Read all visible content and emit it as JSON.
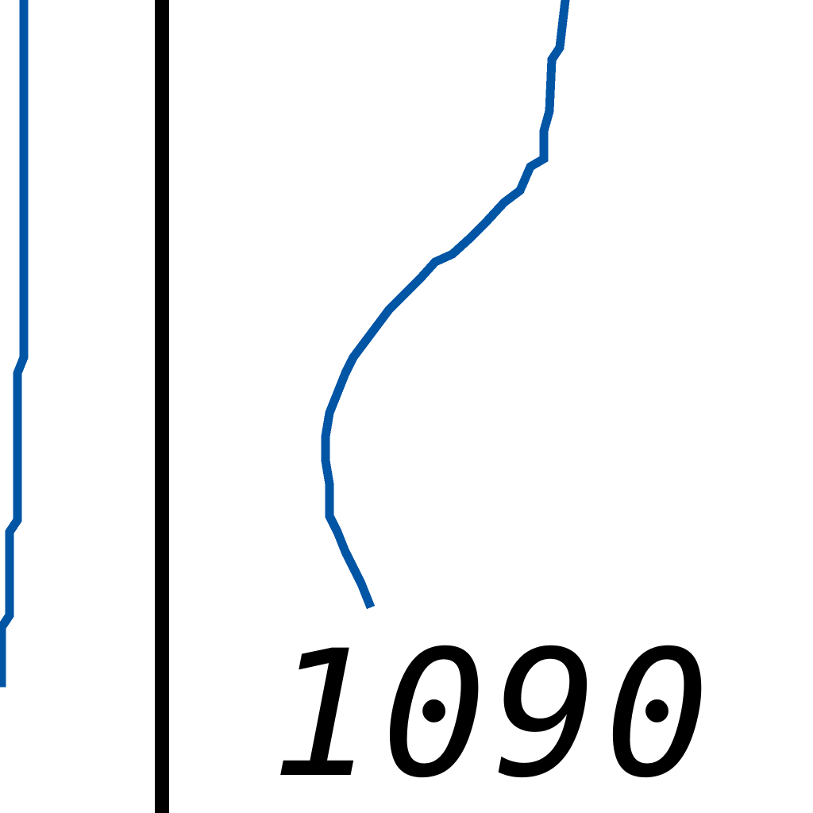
{
  "chart_data": {
    "type": "line",
    "title": "",
    "xlabel": "",
    "ylabel": "",
    "grid": false,
    "axis_color": "#000000",
    "series_color": "#0055a5",
    "x_tick_labels": [
      "1090"
    ],
    "series": [
      {
        "values": [
          [
            30,
            0
          ],
          [
            30,
            20
          ],
          [
            30,
            60
          ],
          [
            30,
            120
          ],
          [
            30,
            200
          ],
          [
            30,
            300
          ],
          [
            30,
            400
          ],
          [
            30,
            450
          ],
          [
            22,
            470
          ],
          [
            22,
            560
          ],
          [
            22,
            655
          ],
          [
            12,
            670
          ],
          [
            12,
            775
          ],
          [
            2,
            790
          ],
          [
            2,
            860
          ]
        ]
      },
      {
        "values": [
          [
            712,
            0
          ],
          [
            705,
            60
          ],
          [
            695,
            75
          ],
          [
            692,
            140
          ],
          [
            685,
            165
          ],
          [
            685,
            200
          ],
          [
            668,
            210
          ],
          [
            655,
            240
          ],
          [
            635,
            255
          ],
          [
            612,
            280
          ],
          [
            592,
            300
          ],
          [
            570,
            320
          ],
          [
            548,
            330
          ],
          [
            530,
            350
          ],
          [
            510,
            370
          ],
          [
            490,
            390
          ],
          [
            475,
            410
          ],
          [
            460,
            430
          ],
          [
            445,
            450
          ],
          [
            435,
            470
          ],
          [
            425,
            495
          ],
          [
            415,
            520
          ],
          [
            410,
            550
          ],
          [
            410,
            580
          ],
          [
            415,
            610
          ],
          [
            415,
            650
          ],
          [
            425,
            670
          ],
          [
            435,
            695
          ],
          [
            445,
            715
          ],
          [
            455,
            735
          ],
          [
            465,
            760
          ]
        ]
      }
    ]
  }
}
